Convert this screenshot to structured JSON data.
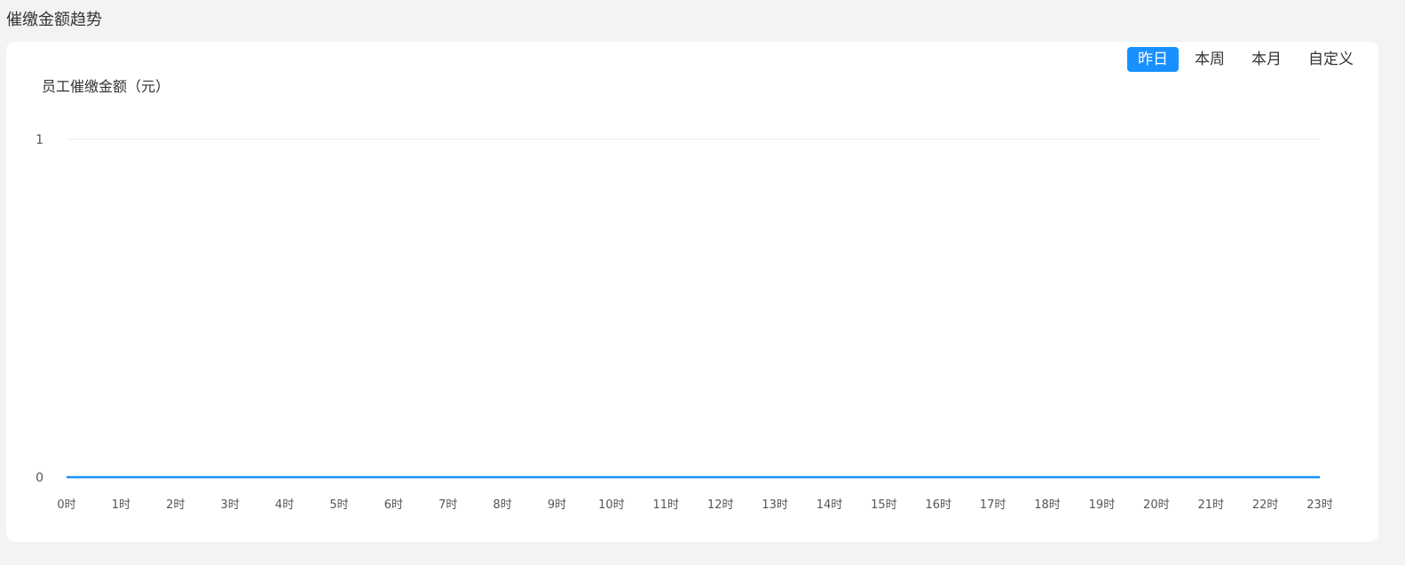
{
  "section_title": "催缴金额趋势",
  "tabs": [
    {
      "label": "昨日",
      "active": true
    },
    {
      "label": "本周",
      "active": false
    },
    {
      "label": "本月",
      "active": false
    },
    {
      "label": "自定义",
      "active": false
    }
  ],
  "colors": {
    "accent": "#1890ff",
    "line": "#1890ff",
    "grid": "#e8e8e8"
  },
  "chart_data": {
    "type": "line",
    "ylabel": "员工催缴金额（元）",
    "ylim": [
      0,
      1
    ],
    "yticks": [
      "0",
      "1"
    ],
    "categories": [
      "0时",
      "1时",
      "2时",
      "3时",
      "4时",
      "5时",
      "6时",
      "7时",
      "8时",
      "9时",
      "10时",
      "11时",
      "12时",
      "13时",
      "14时",
      "15时",
      "16时",
      "17时",
      "18时",
      "19时",
      "20时",
      "21时",
      "22时",
      "23时"
    ],
    "values": [
      0,
      0,
      0,
      0,
      0,
      0,
      0,
      0,
      0,
      0,
      0,
      0,
      0,
      0,
      0,
      0,
      0,
      0,
      0,
      0,
      0,
      0,
      0,
      0
    ],
    "grid": true,
    "legend": "none"
  }
}
